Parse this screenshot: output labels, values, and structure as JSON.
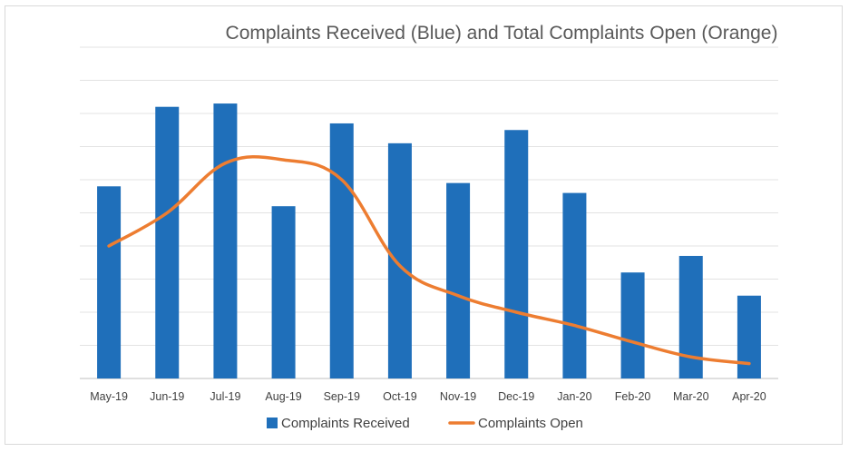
{
  "chart_data": {
    "type": "bar",
    "title": "Complaints Received (Blue) and Total Complaints Open (Orange)",
    "xlabel": "",
    "ylabel": "",
    "categories": [
      "May-19",
      "Jun-19",
      "Jul-19",
      "Aug-19",
      "Sep-19",
      "Oct-19",
      "Nov-19",
      "Dec-19",
      "Jan-20",
      "Feb-20",
      "Mar-20",
      "Apr-20"
    ],
    "ylim": [
      0,
      100
    ],
    "grid": true,
    "y_tick_labels_visible": false,
    "legend_position": "bottom",
    "series": [
      {
        "name": "Complaints Received",
        "type": "bar",
        "color": "#1f6fba",
        "values": [
          58,
          82,
          83,
          52,
          77,
          71,
          59,
          75,
          56,
          32,
          37,
          25
        ]
      },
      {
        "name": "Complaints Open",
        "type": "line",
        "color": "#ed7d31",
        "values": [
          40,
          50,
          65,
          66,
          60,
          34,
          25,
          20,
          16,
          11,
          6.5,
          4.5
        ]
      }
    ]
  }
}
